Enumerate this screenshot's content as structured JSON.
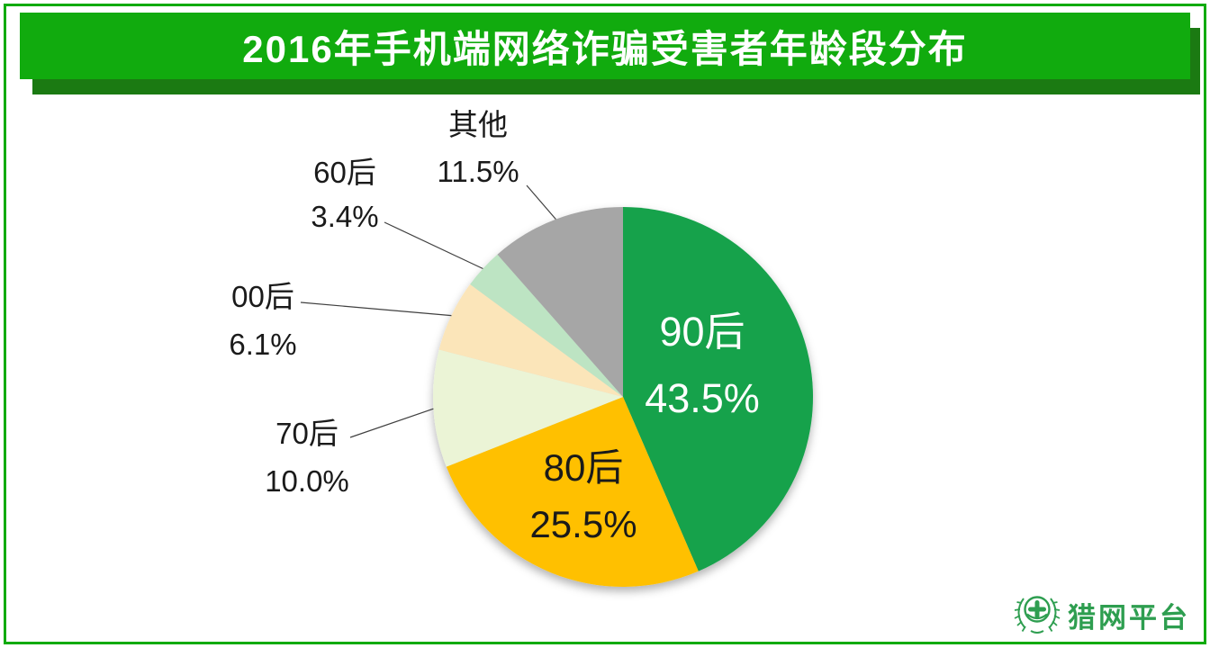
{
  "frame": {
    "border_color": "#11AB0E"
  },
  "header": {
    "title": "2016年手机端网络诈骗受害者年龄段分布",
    "bg_color": "#11AB0E",
    "shadow_color": "#1B7A12",
    "text_color": "#FFFFFF"
  },
  "chart_data": {
    "type": "pie",
    "title": "2016年手机端网络诈骗受害者年龄段分布",
    "start_angle_deg": 0,
    "direction": "clockwise",
    "legend": "none",
    "leader_line_color": "#404040",
    "segments": [
      {
        "label": "90后",
        "value": 43.5,
        "display": "43.5%",
        "color": "#14A24B",
        "label_placement": "inside",
        "label_color": "#FFFFFF"
      },
      {
        "label": "80后",
        "value": 25.5,
        "display": "25.5%",
        "color": "#FFC000",
        "label_placement": "inside",
        "label_color": "#1A1A1A"
      },
      {
        "label": "70后",
        "value": 10.0,
        "display": "10.0%",
        "color": "#EBF4D6",
        "label_placement": "outside",
        "label_color": "#1A1A1A"
      },
      {
        "label": "00后",
        "value": 6.1,
        "display": "6.1%",
        "color": "#FBE5B9",
        "label_placement": "outside",
        "label_color": "#1A1A1A"
      },
      {
        "label": "60后",
        "value": 3.4,
        "display": "3.4%",
        "color": "#BDE4C3",
        "label_placement": "outside",
        "label_color": "#1A1A1A"
      },
      {
        "label": "其他",
        "value": 11.5,
        "display": "11.5%",
        "color": "#A6A6A6",
        "label_placement": "outside",
        "label_color": "#1A1A1A"
      }
    ]
  },
  "logo": {
    "text": "猎网平台",
    "color": "#2E9E50",
    "emblem": "wreath-cross-icon"
  }
}
